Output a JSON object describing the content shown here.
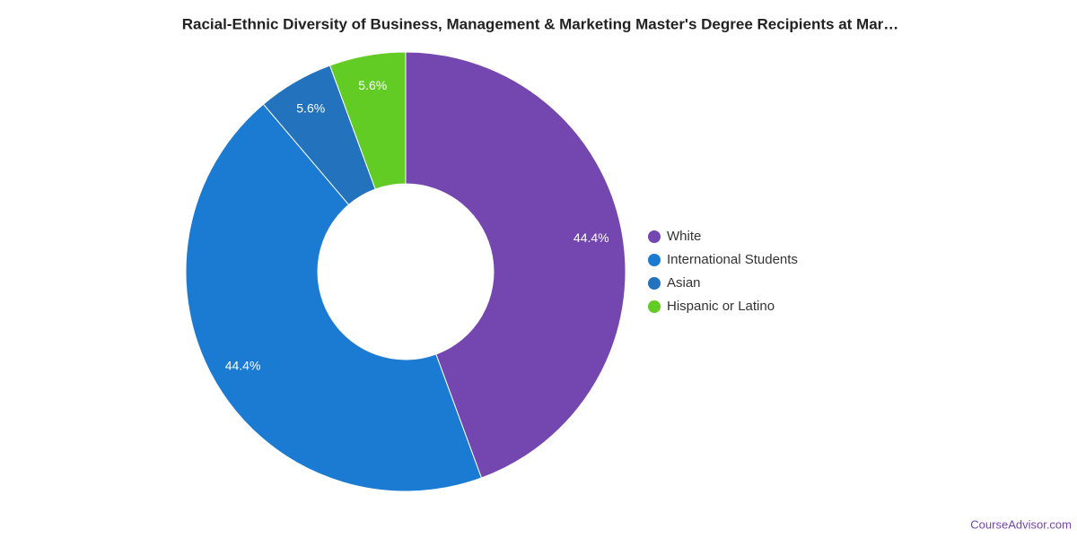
{
  "chart_data": {
    "type": "donut",
    "title": "Racial-Ethnic Diversity of Business, Management & Marketing Master's Degree Recipients at Mar…",
    "categories": [
      "White",
      "International Students",
      "Asian",
      "Hispanic or Latino"
    ],
    "values": [
      44.4,
      44.4,
      5.6,
      5.6
    ],
    "value_labels": [
      "44.4%",
      "44.4%",
      "5.6%",
      "5.6%"
    ],
    "colors": [
      "#7446b0",
      "#1b7bd3",
      "#2272bd",
      "#63cc24"
    ],
    "source": "CourseAdvisor.com"
  }
}
